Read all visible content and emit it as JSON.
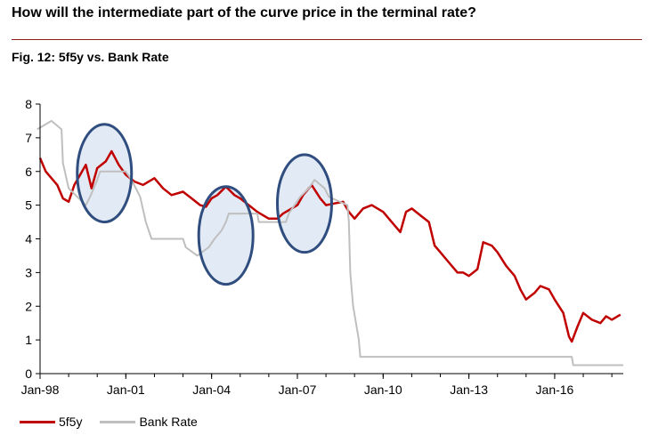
{
  "headline": "How will the intermediate part of the curve price in the terminal rate?",
  "figure_title": "Fig. 12: 5f5y vs. Bank Rate",
  "colors": {
    "red": "#c00000",
    "grey": "#bfbfbf",
    "circle_stroke": "#2f4d7e",
    "circle_fill": "#dde6f3",
    "rule": "#8b1a1a"
  },
  "chart_data": {
    "type": "line",
    "title": "Fig. 12: 5f5y vs. Bank Rate",
    "xlabel": "",
    "ylabel": "",
    "x_ticks": [
      "Jan-98",
      "Jan-01",
      "Jan-04",
      "Jan-07",
      "Jan-10",
      "Jan-13",
      "Jan-16"
    ],
    "xlim": [
      "Jan-98",
      "Jun-18"
    ],
    "ylim": [
      0,
      8
    ],
    "y_ticks": [
      0,
      1,
      2,
      3,
      4,
      5,
      6,
      7,
      8
    ],
    "grid": false,
    "legend_position": "bottom-left",
    "series": [
      {
        "name": "5f5y",
        "color": "#c00000",
        "points": [
          [
            1998.0,
            6.4
          ],
          [
            1998.2,
            6.0
          ],
          [
            1998.4,
            5.8
          ],
          [
            1998.6,
            5.6
          ],
          [
            1998.8,
            5.2
          ],
          [
            1999.0,
            5.1
          ],
          [
            1999.2,
            5.6
          ],
          [
            1999.4,
            5.9
          ],
          [
            1999.6,
            6.2
          ],
          [
            1999.8,
            5.5
          ],
          [
            2000.0,
            6.1
          ],
          [
            2000.3,
            6.3
          ],
          [
            2000.5,
            6.6
          ],
          [
            2000.75,
            6.2
          ],
          [
            2001.0,
            5.9
          ],
          [
            2001.3,
            5.7
          ],
          [
            2001.6,
            5.6
          ],
          [
            2002.0,
            5.8
          ],
          [
            2002.3,
            5.5
          ],
          [
            2002.6,
            5.3
          ],
          [
            2003.0,
            5.4
          ],
          [
            2003.3,
            5.2
          ],
          [
            2003.6,
            5.0
          ],
          [
            2003.8,
            4.95
          ],
          [
            2004.0,
            5.2
          ],
          [
            2004.2,
            5.3
          ],
          [
            2004.5,
            5.55
          ],
          [
            2004.8,
            5.3
          ],
          [
            2005.0,
            5.2
          ],
          [
            2005.3,
            5.0
          ],
          [
            2005.6,
            4.8
          ],
          [
            2006.0,
            4.6
          ],
          [
            2006.3,
            4.6
          ],
          [
            2006.5,
            4.75
          ],
          [
            2006.8,
            4.9
          ],
          [
            2007.0,
            5.0
          ],
          [
            2007.2,
            5.3
          ],
          [
            2007.5,
            5.6
          ],
          [
            2007.8,
            5.2
          ],
          [
            2008.0,
            5.0
          ],
          [
            2008.3,
            5.05
          ],
          [
            2008.6,
            5.1
          ],
          [
            2008.8,
            4.8
          ],
          [
            2009.0,
            4.6
          ],
          [
            2009.3,
            4.9
          ],
          [
            2009.6,
            5.0
          ],
          [
            2010.0,
            4.8
          ],
          [
            2010.3,
            4.5
          ],
          [
            2010.6,
            4.2
          ],
          [
            2010.8,
            4.8
          ],
          [
            2011.0,
            4.9
          ],
          [
            2011.3,
            4.7
          ],
          [
            2011.6,
            4.5
          ],
          [
            2011.8,
            3.8
          ],
          [
            2012.0,
            3.6
          ],
          [
            2012.3,
            3.3
          ],
          [
            2012.6,
            3.0
          ],
          [
            2012.8,
            3.0
          ],
          [
            2013.0,
            2.9
          ],
          [
            2013.3,
            3.1
          ],
          [
            2013.5,
            3.9
          ],
          [
            2013.8,
            3.8
          ],
          [
            2014.0,
            3.6
          ],
          [
            2014.3,
            3.2
          ],
          [
            2014.6,
            2.9
          ],
          [
            2014.8,
            2.5
          ],
          [
            2015.0,
            2.2
          ],
          [
            2015.3,
            2.4
          ],
          [
            2015.5,
            2.6
          ],
          [
            2015.8,
            2.5
          ],
          [
            2016.0,
            2.2
          ],
          [
            2016.3,
            1.8
          ],
          [
            2016.5,
            1.1
          ],
          [
            2016.6,
            0.95
          ],
          [
            2016.8,
            1.4
          ],
          [
            2017.0,
            1.8
          ],
          [
            2017.3,
            1.6
          ],
          [
            2017.6,
            1.5
          ],
          [
            2017.8,
            1.7
          ],
          [
            2018.0,
            1.6
          ],
          [
            2018.3,
            1.75
          ]
        ]
      },
      {
        "name": "Bank Rate",
        "color": "#bfbfbf",
        "points": [
          [
            1997.9,
            7.25
          ],
          [
            1998.4,
            7.5
          ],
          [
            1998.75,
            7.25
          ],
          [
            1998.8,
            6.25
          ],
          [
            1999.0,
            5.5
          ],
          [
            1999.3,
            5.25
          ],
          [
            1999.6,
            5.0
          ],
          [
            1999.75,
            5.25
          ],
          [
            2000.0,
            5.75
          ],
          [
            2000.1,
            6.0
          ],
          [
            2001.0,
            6.0
          ],
          [
            2001.2,
            5.75
          ],
          [
            2001.5,
            5.25
          ],
          [
            2001.7,
            4.5
          ],
          [
            2001.9,
            4.0
          ],
          [
            2003.0,
            4.0
          ],
          [
            2003.1,
            3.75
          ],
          [
            2003.5,
            3.5
          ],
          [
            2003.9,
            3.75
          ],
          [
            2004.1,
            4.0
          ],
          [
            2004.35,
            4.25
          ],
          [
            2004.5,
            4.5
          ],
          [
            2004.6,
            4.75
          ],
          [
            2005.6,
            4.75
          ],
          [
            2005.65,
            4.5
          ],
          [
            2006.6,
            4.5
          ],
          [
            2006.7,
            4.75
          ],
          [
            2006.9,
            5.0
          ],
          [
            2007.1,
            5.25
          ],
          [
            2007.4,
            5.5
          ],
          [
            2007.6,
            5.75
          ],
          [
            2007.95,
            5.5
          ],
          [
            2008.1,
            5.25
          ],
          [
            2008.75,
            5.0
          ],
          [
            2008.8,
            4.5
          ],
          [
            2008.85,
            3.0
          ],
          [
            2008.95,
            2.0
          ],
          [
            2009.05,
            1.5
          ],
          [
            2009.15,
            1.0
          ],
          [
            2009.2,
            0.5
          ],
          [
            2016.6,
            0.5
          ],
          [
            2016.65,
            0.25
          ],
          [
            2018.4,
            0.25
          ]
        ]
      }
    ],
    "annotations": [
      {
        "shape": "ellipse",
        "cx": 2000.25,
        "cy": 5.95,
        "rx_years": 0.95,
        "ry_value": 1.45
      },
      {
        "shape": "ellipse",
        "cx": 2004.5,
        "cy": 4.1,
        "rx_years": 0.95,
        "ry_value": 1.45
      },
      {
        "shape": "ellipse",
        "cx": 2007.25,
        "cy": 5.05,
        "rx_years": 0.95,
        "ry_value": 1.45
      }
    ]
  },
  "legend": {
    "items": [
      {
        "label": "5f5y",
        "color": "#c00000"
      },
      {
        "label": "Bank Rate",
        "color": "#bfbfbf"
      }
    ]
  }
}
